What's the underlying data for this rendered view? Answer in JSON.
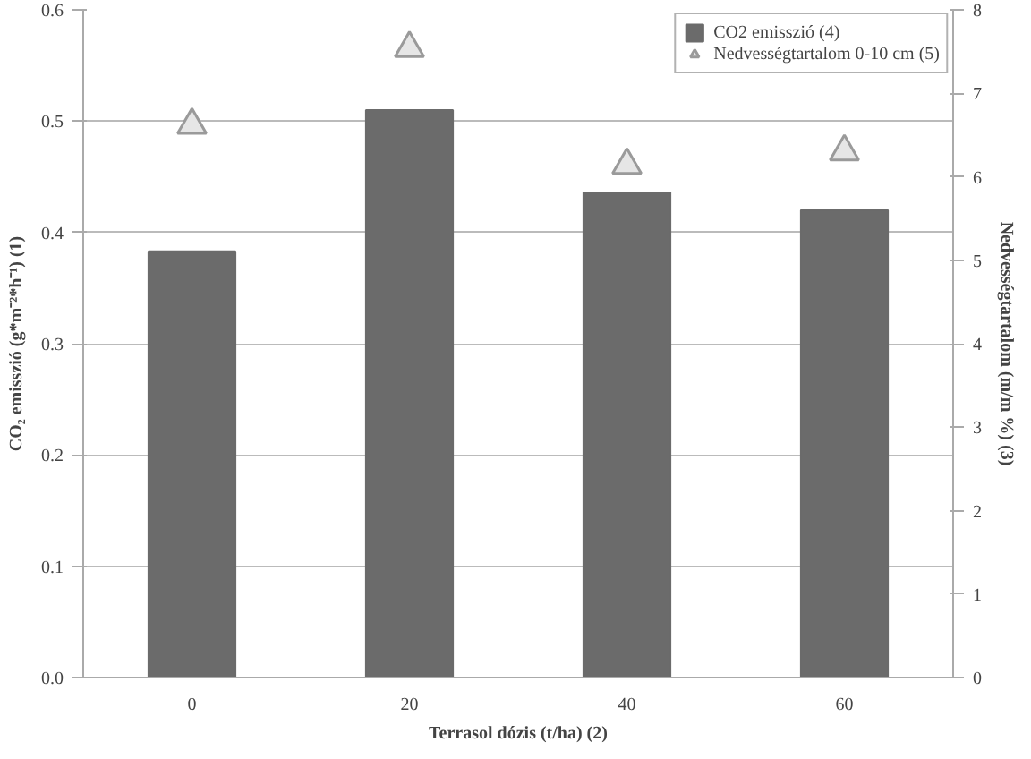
{
  "chart_data": {
    "type": "bar",
    "xlabel": "Terrasol dózis (t/ha) (2)",
    "ylabel": "CO₂ emisszió (g*m⁻²*h⁻¹) (1)",
    "y2label": "Nedvességtartalom (m/m %) (3)",
    "categories": [
      "0",
      "20",
      "40",
      "60"
    ],
    "series": [
      {
        "name": "CO2 emisszió (4)",
        "color": "#6b6b6b",
        "values": [
          0.383,
          0.51,
          0.436,
          0.42
        ]
      },
      {
        "name": "Nedvességtartalom 0-10 cm (5)",
        "type": "scatter",
        "axis": "y2",
        "marker": "triangle",
        "color": "#9a9a9a",
        "values": [
          6.62,
          7.54,
          6.14,
          6.3
        ]
      }
    ],
    "ylim": [
      0,
      0.6
    ],
    "yticks": [
      {
        "value": 0,
        "label": "0.0"
      },
      0.1,
      0.2,
      0.3,
      0.4,
      0.5,
      0.6
    ],
    "y2lim": [
      0,
      8
    ],
    "y2ticks": [
      0,
      1,
      2,
      3,
      4,
      5,
      6,
      7,
      8
    ],
    "grid": "y",
    "legend": "top right"
  }
}
